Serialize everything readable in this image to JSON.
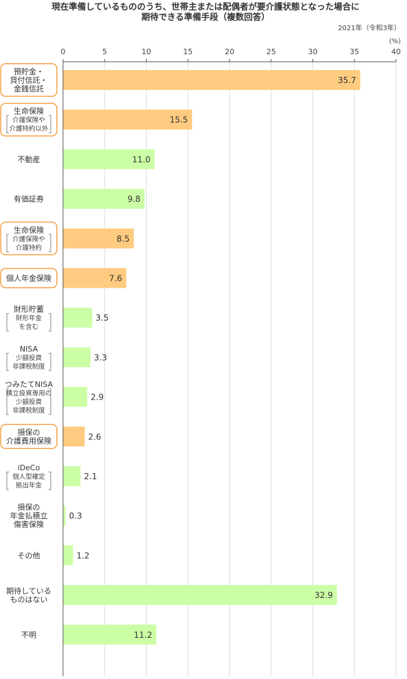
{
  "chart_data": {
    "type": "bar",
    "orientation": "horizontal",
    "title": [
      "現在準備しているもののうち、世帯主または配偶者が要介護状態となった場合に",
      "期待できる準備手段（複数回答）"
    ],
    "year_note": "2021年（令和3年）",
    "unit": "(%)",
    "xlim": [
      0,
      40
    ],
    "ticks": [
      "0",
      "5",
      "10",
      "15",
      "20",
      "25",
      "30",
      "35",
      "40"
    ],
    "colors": {
      "orange": "#ffcb80",
      "green": "#ccfea6",
      "orange_border": "#f4a24a",
      "grid": "#dddddd",
      "axis": "#555555"
    },
    "categories": [
      {
        "main": [
          "預貯金・",
          "貸付信託・",
          "金銭信託"
        ],
        "sub": [],
        "value": 35.7,
        "label": "35.7",
        "color": "orange",
        "boxed": true
      },
      {
        "main": [
          "生命保険"
        ],
        "sub": [
          "介護保険や",
          "介護特約以外"
        ],
        "value": 15.5,
        "label": "15.5",
        "color": "orange",
        "boxed": true
      },
      {
        "main": [
          "不動産"
        ],
        "sub": [],
        "value": 11.0,
        "label": "11.0",
        "color": "green",
        "boxed": false
      },
      {
        "main": [
          "有価証券"
        ],
        "sub": [],
        "value": 9.8,
        "label": "9.8",
        "color": "green",
        "boxed": false
      },
      {
        "main": [
          "生命保険"
        ],
        "sub": [
          "介護保険や",
          "介護特約"
        ],
        "value": 8.5,
        "label": "8.5",
        "color": "orange",
        "boxed": true
      },
      {
        "main": [
          "個人年金保険"
        ],
        "sub": [],
        "value": 7.6,
        "label": "7.6",
        "color": "orange",
        "boxed": true
      },
      {
        "main": [
          "財形貯蓄"
        ],
        "sub": [
          "財形年金",
          "を含む"
        ],
        "value": 3.5,
        "label": "3.5",
        "color": "green",
        "boxed": false
      },
      {
        "main": [
          "NISA"
        ],
        "sub": [
          "少額投資",
          "非課税制度"
        ],
        "value": 3.3,
        "label": "3.3",
        "color": "green",
        "boxed": false
      },
      {
        "main": [
          "つみたてNISA"
        ],
        "sub": [
          "積立投資専用の",
          "少額投資",
          "非課税制度"
        ],
        "value": 2.9,
        "label": "2.9",
        "color": "green",
        "boxed": false
      },
      {
        "main": [
          "損保の",
          "介護費用保険"
        ],
        "sub": [],
        "value": 2.6,
        "label": "2.6",
        "color": "orange",
        "boxed": true
      },
      {
        "main": [
          "iDeCo"
        ],
        "sub": [
          "個人型確定",
          "拠出年金"
        ],
        "value": 2.1,
        "label": "2.1",
        "color": "green",
        "boxed": false
      },
      {
        "main": [
          "損保の",
          "年金払積立",
          "傷害保険"
        ],
        "sub": [],
        "value": 0.3,
        "label": "0.3",
        "color": "green",
        "boxed": false
      },
      {
        "main": [
          "その他"
        ],
        "sub": [],
        "value": 1.2,
        "label": "1.2",
        "color": "green",
        "boxed": false
      },
      {
        "main": [
          "期待している",
          "ものはない"
        ],
        "sub": [],
        "value": 32.9,
        "label": "32.9",
        "color": "green",
        "boxed": false
      },
      {
        "main": [
          "不明"
        ],
        "sub": [],
        "value": 11.2,
        "label": "11.2",
        "color": "green",
        "boxed": false
      }
    ]
  }
}
